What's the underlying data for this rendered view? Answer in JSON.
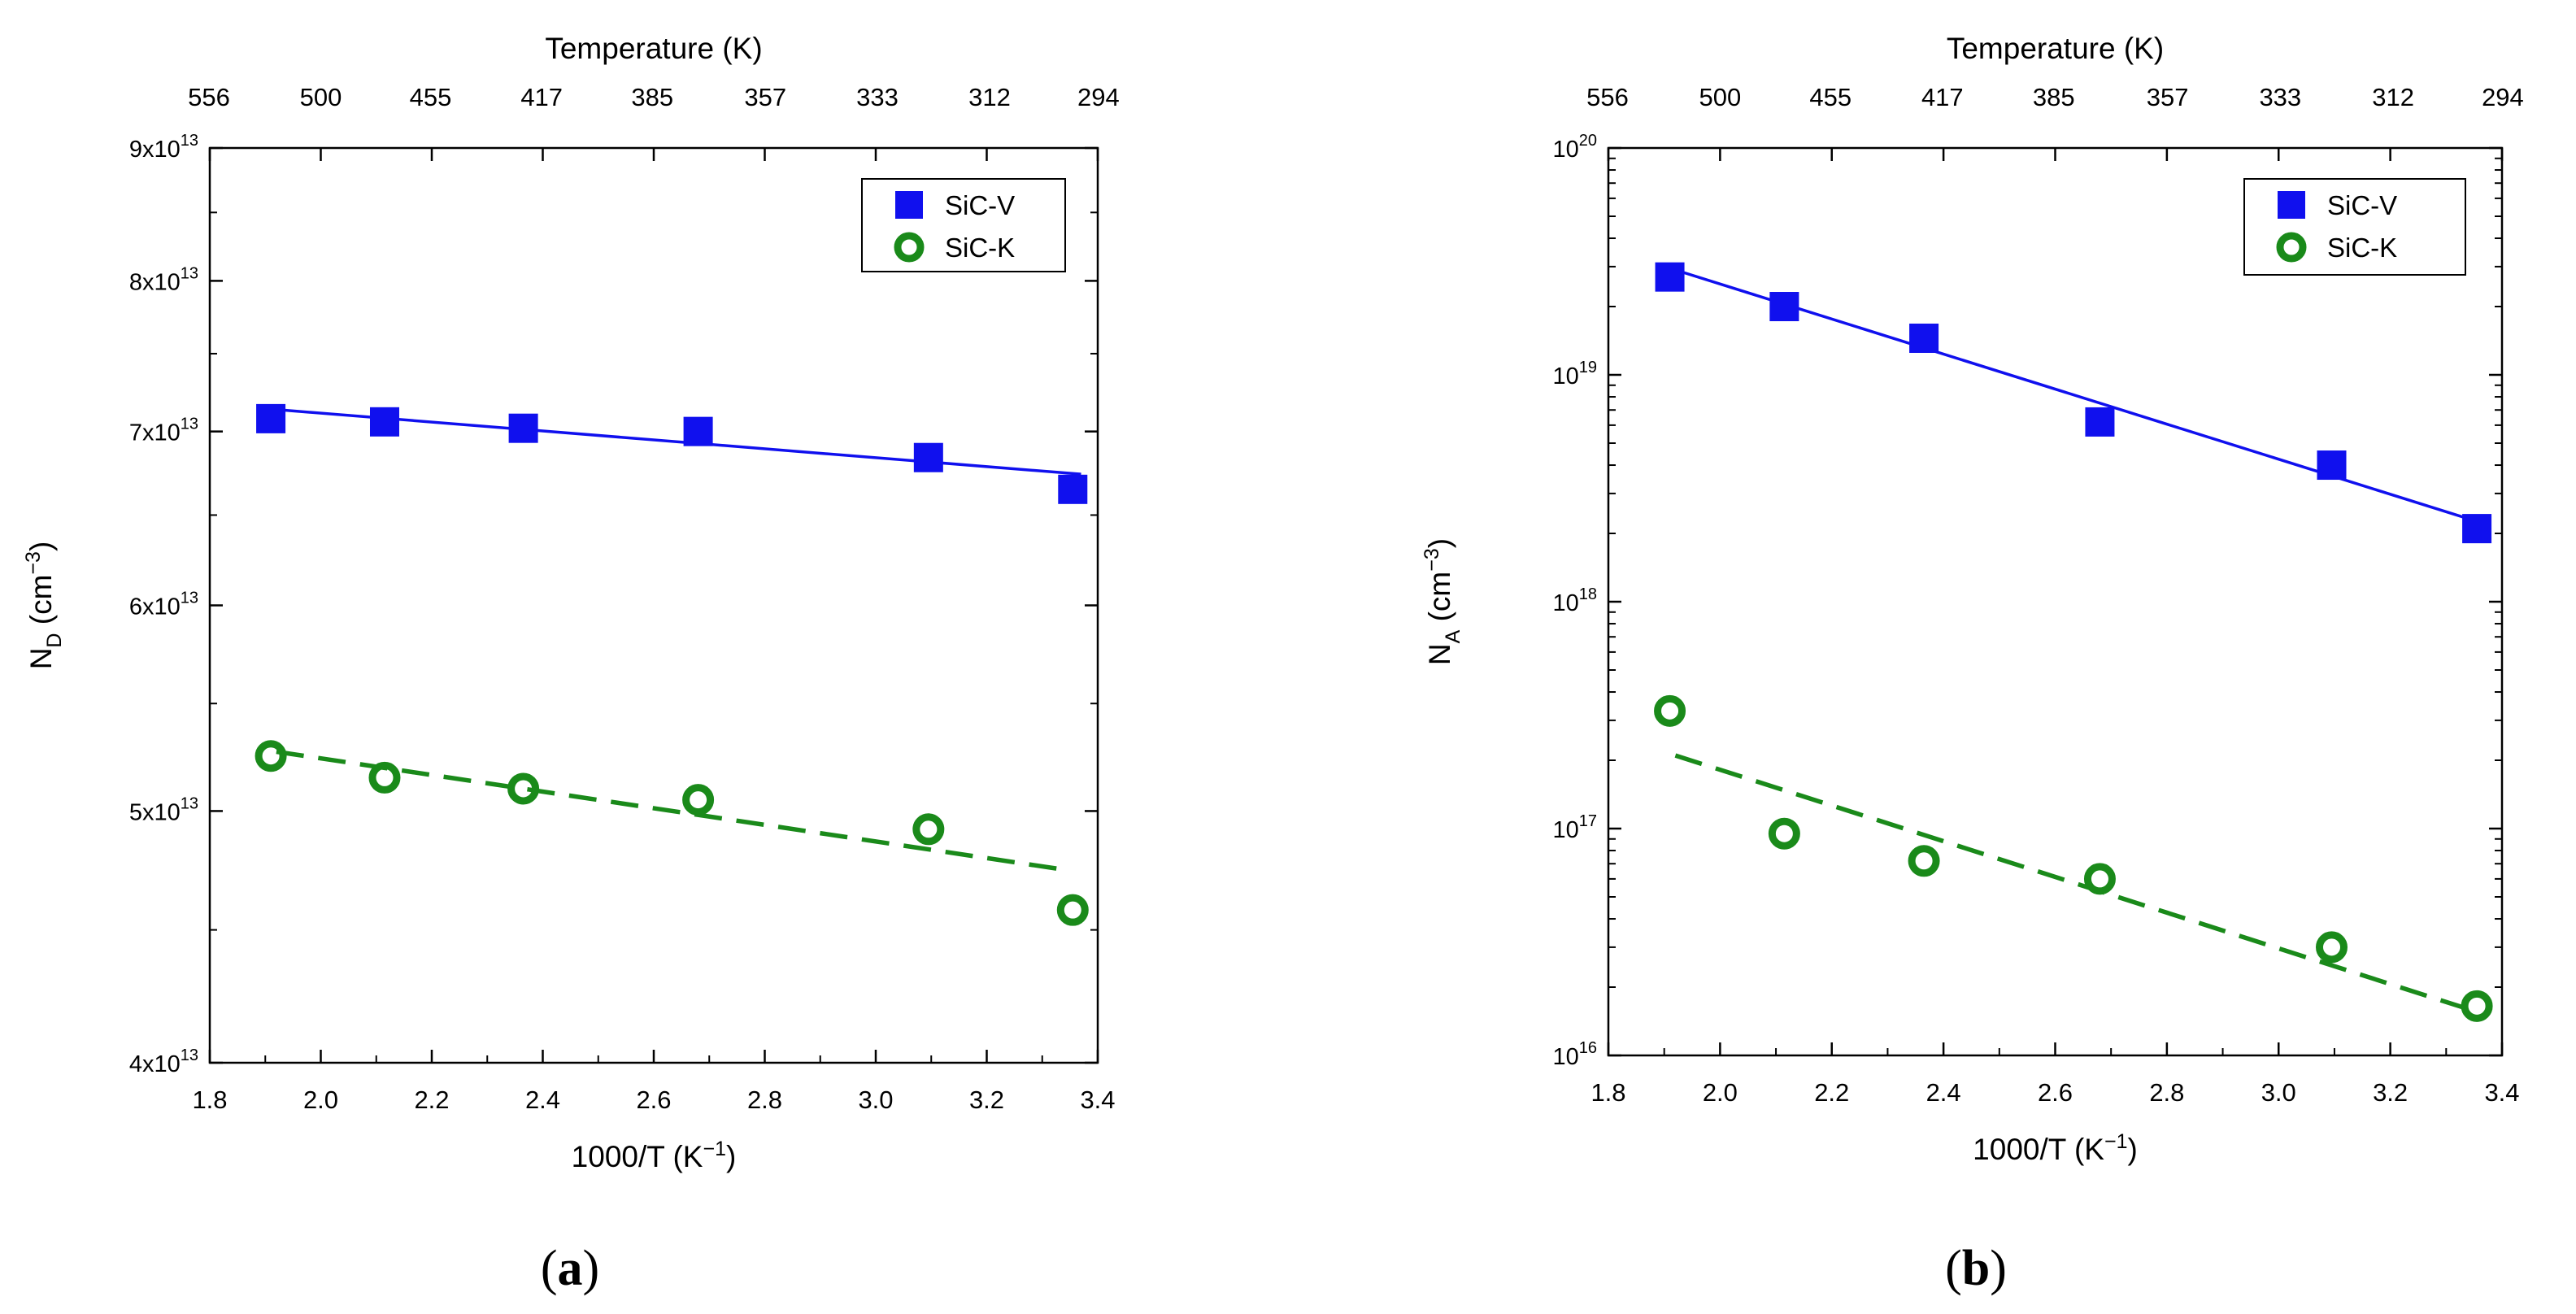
{
  "chart_data": [
    {
      "type": "scatter",
      "panel": "(a)",
      "panel_letter": "a",
      "top_axis_label": "Temperature (K)",
      "top_ticks": [
        "556",
        "500",
        "455",
        "417",
        "385",
        "357",
        "333",
        "312",
        "294"
      ],
      "top_tick_values": [
        556,
        500,
        455,
        417,
        385,
        357,
        333,
        312,
        294
      ],
      "x_label_main": "1000/T (K",
      "x_label_sup": "−1",
      "x_label_close": ")",
      "y_label_main": "N",
      "y_label_sub": "D",
      "y_label_unit": " (cm",
      "y_label_sup": "−3",
      "y_label_close": ")",
      "xlim": [
        1.8,
        3.4
      ],
      "x_ticks": [
        1.8,
        2.0,
        2.2,
        2.4,
        2.6,
        2.8,
        3.0,
        3.2,
        3.4
      ],
      "x_tick_labels": [
        "1.8",
        "2.0",
        "2.2",
        "2.4",
        "2.6",
        "2.8",
        "3.0",
        "3.2",
        "3.4"
      ],
      "y_scale": "log",
      "ylim": [
        40000000000000.0,
        90000000000000.0
      ],
      "y_ticks": [
        40000000000000.0,
        50000000000000.0,
        60000000000000.0,
        70000000000000.0,
        80000000000000.0,
        90000000000000.0
      ],
      "y_tick_labels": [
        {
          "base": "4x10",
          "exp": "13"
        },
        {
          "base": "5x10",
          "exp": "13"
        },
        {
          "base": "6x10",
          "exp": "13"
        },
        {
          "base": "7x10",
          "exp": "13"
        },
        {
          "base": "8x10",
          "exp": "13"
        },
        {
          "base": "9x10",
          "exp": "13"
        }
      ],
      "legend_position": "top-right",
      "series": [
        {
          "name": "SiC-V",
          "marker": "filled-square",
          "color": "#1010ee",
          "x": [
            1.91,
            2.115,
            2.365,
            2.68,
            3.095,
            3.355
          ],
          "y": [
            70800000000000.0,
            70600000000000.0,
            70200000000000.0,
            70000000000000.0,
            68400000000000.0,
            66500000000000.0
          ],
          "fit": {
            "style": "solid",
            "x": [
              1.91,
              3.37
            ],
            "y": [
              71400000000000.0,
              67400000000000.0
            ]
          }
        },
        {
          "name": "SiC-K",
          "marker": "open-circle",
          "color": "#1a8a1a",
          "x": [
            1.91,
            2.115,
            2.365,
            2.68,
            3.095,
            3.355
          ],
          "y": [
            52500000000000.0,
            51500000000000.0,
            51000000000000.0,
            50500000000000.0,
            49200000000000.0,
            45800000000000.0
          ],
          "fit": {
            "style": "dashed",
            "x": [
              1.92,
              3.33
            ],
            "y": [
              52700000000000.0,
              47500000000000.0
            ]
          }
        }
      ]
    },
    {
      "type": "scatter",
      "panel": "(b)",
      "panel_letter": "b",
      "top_axis_label": "Temperature (K)",
      "top_ticks": [
        "556",
        "500",
        "455",
        "417",
        "385",
        "357",
        "333",
        "312",
        "294"
      ],
      "top_tick_values": [
        556,
        500,
        455,
        417,
        385,
        357,
        333,
        312,
        294
      ],
      "x_label_main": "1000/T (K",
      "x_label_sup": "−1",
      "x_label_close": ")",
      "y_label_main": "N",
      "y_label_sub": "A",
      "y_label_unit": " (cm",
      "y_label_sup": "−3",
      "y_label_close": ")",
      "xlim": [
        1.8,
        3.4
      ],
      "x_ticks": [
        1.8,
        2.0,
        2.2,
        2.4,
        2.6,
        2.8,
        3.0,
        3.2,
        3.4
      ],
      "x_tick_labels": [
        "1.8",
        "2.0",
        "2.2",
        "2.4",
        "2.6",
        "2.8",
        "3.0",
        "3.2",
        "3.4"
      ],
      "y_scale": "log",
      "ylim": [
        1e+16,
        1e+20
      ],
      "y_ticks": [
        1e+16,
        1e+17,
        1e+18,
        1e+19,
        1e+20
      ],
      "y_tick_labels": [
        {
          "base": "10",
          "exp": "16"
        },
        {
          "base": "10",
          "exp": "17"
        },
        {
          "base": "10",
          "exp": "18"
        },
        {
          "base": "10",
          "exp": "19"
        },
        {
          "base": "10",
          "exp": "20"
        }
      ],
      "legend_position": "top-right",
      "series": [
        {
          "name": "SiC-V",
          "marker": "filled-square",
          "color": "#1010ee",
          "x": [
            1.91,
            2.115,
            2.365,
            2.68,
            3.095,
            3.355
          ],
          "y": [
            2.7e+19,
            2e+19,
            1.45e+19,
            6.2e+18,
            4e+18,
            2.1e+18
          ],
          "fit": {
            "style": "solid",
            "x": [
              1.92,
              3.37
            ],
            "y": [
              2.9e+19,
              2.2e+18
            ]
          }
        },
        {
          "name": "SiC-K",
          "marker": "open-circle",
          "color": "#1a8a1a",
          "x": [
            1.91,
            2.115,
            2.365,
            2.68,
            3.095,
            3.355
          ],
          "y": [
            3.3e+17,
            9.5e+16,
            7.2e+16,
            6e+16,
            3e+16,
            1.65e+16
          ],
          "fit": {
            "style": "dashed",
            "x": [
              1.92,
              3.34
            ],
            "y": [
              2.1e+17,
              1.6e+16
            ]
          }
        }
      ]
    }
  ]
}
